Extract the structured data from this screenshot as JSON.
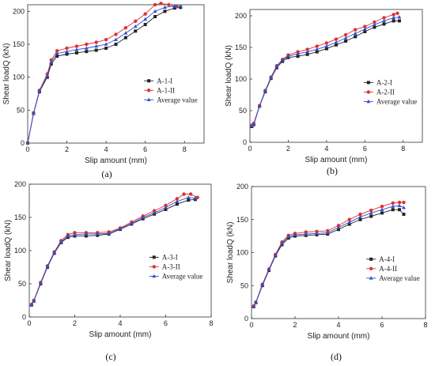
{
  "chart_data": [
    {
      "type": "line",
      "caption": "(a)",
      "xlabel": "Slip amount (mm)",
      "ylabel": "Shear loadQ (kN)",
      "xlim": [
        0,
        9
      ],
      "ylim": [
        0,
        210
      ],
      "xticks": [
        "0",
        "2",
        "4",
        "6",
        "8"
      ],
      "yticks": [
        "0",
        "50",
        "100",
        "150",
        "200"
      ],
      "legend_position": "bottom-right",
      "series": [
        {
          "name": "A-1-I",
          "color": "#222222",
          "marker": "square",
          "x": [
            0,
            0.3,
            0.6,
            1.0,
            1.2,
            1.5,
            2.0,
            2.5,
            3.0,
            3.5,
            4.0,
            4.5,
            5.0,
            5.5,
            6.0,
            6.5,
            7.0,
            7.5,
            7.8
          ],
          "y": [
            0,
            45,
            78,
            100,
            120,
            132,
            135,
            137,
            139,
            141,
            144,
            150,
            160,
            170,
            180,
            192,
            200,
            205,
            206
          ]
        },
        {
          "name": "A-1-II",
          "color": "#e03030",
          "marker": "circle",
          "x": [
            0,
            0.3,
            0.6,
            1.0,
            1.2,
            1.5,
            2.0,
            2.5,
            3.0,
            3.5,
            4.0,
            4.5,
            5.0,
            5.5,
            6.0,
            6.5,
            6.8,
            7.2,
            7.6
          ],
          "y": [
            0,
            46,
            80,
            105,
            126,
            140,
            144,
            147,
            150,
            153,
            157,
            165,
            175,
            185,
            196,
            210,
            212,
            210,
            207
          ]
        },
        {
          "name": "Average value",
          "color": "#3050d0",
          "marker": "triangle",
          "x": [
            0,
            0.3,
            0.6,
            1.0,
            1.2,
            1.5,
            2.0,
            2.5,
            3.0,
            3.5,
            4.0,
            4.5,
            5.0,
            5.5,
            6.0,
            6.5,
            7.0,
            7.5,
            7.8
          ],
          "y": [
            0,
            45,
            79,
            102,
            123,
            136,
            139,
            142,
            144,
            147,
            150,
            157,
            167,
            177,
            188,
            200,
            206,
            208,
            208
          ]
        }
      ]
    },
    {
      "type": "line",
      "caption": "(b)",
      "xlabel": "Slip amount (mm)",
      "ylabel": "Shear loadQ (kN)",
      "xlim": [
        0,
        9
      ],
      "ylim": [
        0,
        210
      ],
      "xticks": [
        "0",
        "2",
        "4",
        "6",
        "8"
      ],
      "yticks": [
        "0",
        "50",
        "100",
        "150",
        "200"
      ],
      "legend_position": "bottom-right",
      "series": [
        {
          "name": "A-2-I",
          "color": "#222222",
          "marker": "square",
          "x": [
            0.1,
            0.2,
            0.5,
            0.8,
            1.1,
            1.4,
            1.7,
            2.0,
            2.5,
            3.0,
            3.5,
            4.0,
            4.5,
            5.0,
            5.5,
            6.0,
            6.5,
            7.0,
            7.5,
            7.8
          ],
          "y": [
            25,
            28,
            57,
            80,
            101,
            118,
            128,
            134,
            136,
            139,
            143,
            148,
            154,
            160,
            167,
            175,
            182,
            187,
            192,
            192
          ]
        },
        {
          "name": "A-2-II",
          "color": "#e03030",
          "marker": "circle",
          "x": [
            0.1,
            0.2,
            0.5,
            0.8,
            1.1,
            1.4,
            1.7,
            2.0,
            2.5,
            3.0,
            3.5,
            4.0,
            4.5,
            5.0,
            5.5,
            6.0,
            6.5,
            7.0,
            7.5,
            7.7
          ],
          "y": [
            27,
            30,
            58,
            82,
            103,
            121,
            131,
            138,
            143,
            147,
            152,
            157,
            163,
            170,
            178,
            183,
            190,
            197,
            202,
            204
          ]
        },
        {
          "name": "Average value",
          "color": "#3050d0",
          "marker": "triangle",
          "x": [
            0.1,
            0.2,
            0.5,
            0.8,
            1.1,
            1.4,
            1.7,
            2.0,
            2.5,
            3.0,
            3.5,
            4.0,
            4.5,
            5.0,
            5.5,
            6.0,
            6.5,
            7.0,
            7.5,
            7.8
          ],
          "y": [
            26,
            29,
            57,
            81,
            102,
            120,
            130,
            136,
            140,
            143,
            147,
            152,
            158,
            165,
            172,
            179,
            186,
            192,
            197,
            198
          ]
        }
      ]
    },
    {
      "type": "line",
      "caption": "(c)",
      "xlabel": "Slip amount (mm)",
      "ylabel": "Shear loadQ (kN)",
      "xlim": [
        0,
        8
      ],
      "ylim": [
        0,
        200
      ],
      "xticks": [
        "0",
        "2",
        "4",
        "6",
        "8"
      ],
      "yticks": [
        "0",
        "50",
        "100",
        "150",
        "200"
      ],
      "legend_position": "bottom-right",
      "series": [
        {
          "name": "A-3-I",
          "color": "#222222",
          "marker": "square",
          "x": [
            0.1,
            0.2,
            0.5,
            0.8,
            1.1,
            1.4,
            1.7,
            2.0,
            2.5,
            3.0,
            3.5,
            4.0,
            4.5,
            5.0,
            5.5,
            6.0,
            6.5,
            7.0,
            7.3
          ],
          "y": [
            18,
            24,
            50,
            75,
            96,
            112,
            120,
            122,
            122,
            123,
            125,
            132,
            140,
            148,
            155,
            162,
            170,
            176,
            177
          ]
        },
        {
          "name": "A-3-II",
          "color": "#e03030",
          "marker": "circle",
          "x": [
            0.1,
            0.2,
            0.5,
            0.8,
            1.1,
            1.4,
            1.7,
            2.0,
            2.5,
            3.0,
            3.5,
            4.0,
            4.5,
            5.0,
            5.5,
            6.0,
            6.5,
            6.8,
            7.1,
            7.4
          ],
          "y": [
            19,
            25,
            52,
            77,
            98,
            115,
            124,
            127,
            127,
            127,
            128,
            134,
            143,
            152,
            160,
            168,
            178,
            185,
            185,
            180
          ]
        },
        {
          "name": "Average value",
          "color": "#3050d0",
          "marker": "triangle",
          "x": [
            0.1,
            0.2,
            0.5,
            0.8,
            1.1,
            1.4,
            1.7,
            2.0,
            2.5,
            3.0,
            3.5,
            4.0,
            4.5,
            5.0,
            5.5,
            6.0,
            6.5,
            7.0,
            7.3
          ],
          "y": [
            18,
            24,
            51,
            76,
            97,
            113,
            122,
            124,
            125,
            125,
            126,
            133,
            141,
            150,
            157,
            165,
            174,
            180,
            179
          ]
        }
      ]
    },
    {
      "type": "line",
      "caption": "(d)",
      "xlabel": "Slip amount (mm)",
      "ylabel": "Shear loadQ (kN)",
      "xlim": [
        0,
        8
      ],
      "ylim": [
        0,
        200
      ],
      "xticks": [
        "0",
        "2",
        "4",
        "6",
        "8"
      ],
      "yticks": [
        "0",
        "50",
        "100",
        "150",
        "200"
      ],
      "legend_position": "bottom-right",
      "series": [
        {
          "name": "A-4-I",
          "color": "#222222",
          "marker": "square",
          "x": [
            0.1,
            0.2,
            0.5,
            0.8,
            1.1,
            1.4,
            1.7,
            2.0,
            2.5,
            3.0,
            3.5,
            4.0,
            4.5,
            5.0,
            5.5,
            6.0,
            6.5,
            6.8,
            7.0
          ],
          "y": [
            18,
            24,
            50,
            73,
            95,
            112,
            122,
            125,
            126,
            127,
            128,
            135,
            143,
            150,
            155,
            160,
            165,
            165,
            158
          ]
        },
        {
          "name": "A-4-II",
          "color": "#e03030",
          "marker": "circle",
          "x": [
            0.1,
            0.2,
            0.5,
            0.8,
            1.1,
            1.4,
            1.7,
            2.0,
            2.5,
            3.0,
            3.5,
            4.0,
            4.5,
            5.0,
            5.5,
            6.0,
            6.5,
            6.8,
            7.0
          ],
          "y": [
            19,
            25,
            52,
            75,
            97,
            116,
            126,
            129,
            131,
            132,
            133,
            141,
            150,
            158,
            164,
            170,
            175,
            176,
            176
          ]
        },
        {
          "name": "Average value",
          "color": "#3050d0",
          "marker": "triangle",
          "x": [
            0.1,
            0.2,
            0.5,
            0.8,
            1.1,
            1.4,
            1.7,
            2.0,
            2.5,
            3.0,
            3.5,
            4.0,
            4.5,
            5.0,
            5.5,
            6.0,
            6.5,
            6.8,
            7.0
          ],
          "y": [
            18,
            24,
            51,
            74,
            96,
            114,
            124,
            127,
            128,
            129,
            130,
            138,
            146,
            154,
            160,
            165,
            170,
            171,
            168
          ]
        }
      ]
    }
  ]
}
